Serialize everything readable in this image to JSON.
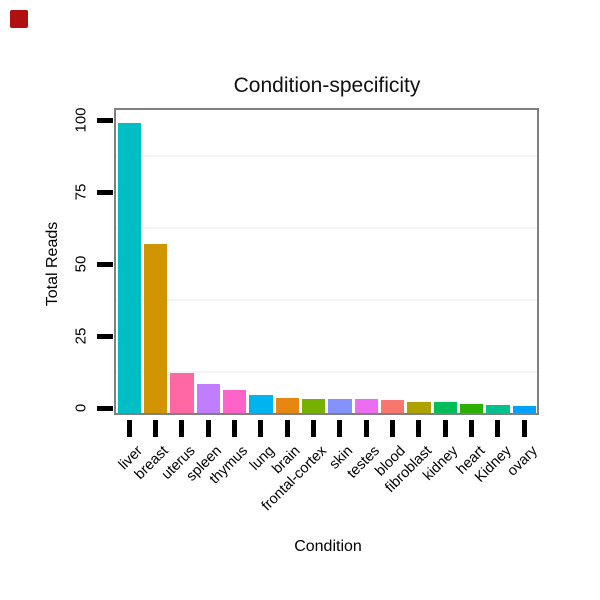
{
  "page": {
    "background_color": "#ffffff",
    "marker_color": "#B01010"
  },
  "chart_data": {
    "type": "bar",
    "title": "Condition-specificity",
    "xlabel": "Condition",
    "ylabel": "Total Reads",
    "categories": [
      "liver",
      "breast",
      "uterus",
      "spleen",
      "thymus",
      "lung",
      "brain",
      "frontal-cortex",
      "skin",
      "testes",
      "blood",
      "fibroblast",
      "kidney",
      "heart",
      "Kidney",
      "ovary"
    ],
    "values": [
      99,
      57,
      12.2,
      8.3,
      6.2,
      4.4,
      3.3,
      3.1,
      3.1,
      3.0,
      2.7,
      2.1,
      2.1,
      1.4,
      1.0,
      0.8
    ],
    "colors": [
      "#00BFC4",
      "#D09500",
      "#FF68A2",
      "#C07EFF",
      "#FF63C8",
      "#00B4EE",
      "#E68613",
      "#77B100",
      "#8492FF",
      "#ED6DF1",
      "#F8766D",
      "#AFA100",
      "#00BC59",
      "#2CB000",
      "#00C08D",
      "#00A2FF"
    ],
    "yticks": [
      0,
      25,
      50,
      75,
      100
    ],
    "ytick_labels": [
      "0",
      "25",
      "50",
      "75",
      "100"
    ],
    "ylim": [
      0,
      104
    ],
    "minor_gridlines": [
      12.5,
      37.5,
      62.5,
      87.5
    ],
    "grid": "horizontal minor only, very faint",
    "legend_position": "none",
    "panel_border_color": "#808080",
    "gridline_color": "#f5f5f5",
    "tick_color": "#000000",
    "text_color": "#000000"
  }
}
